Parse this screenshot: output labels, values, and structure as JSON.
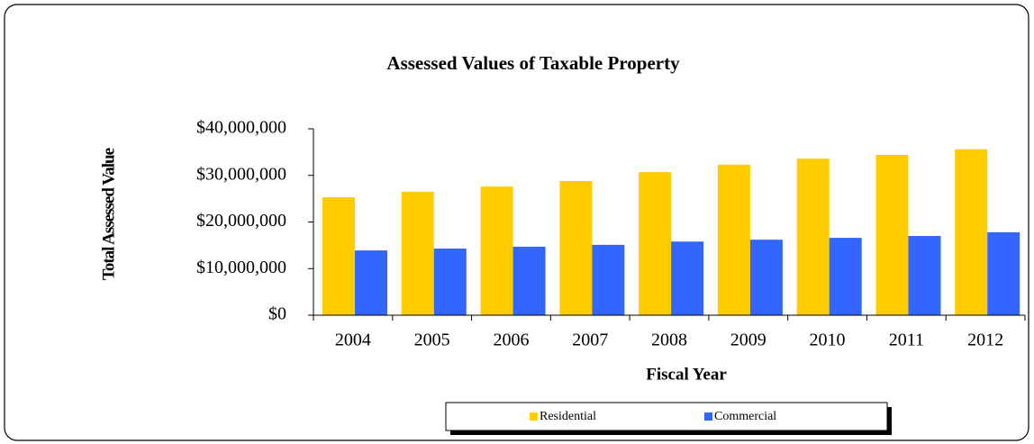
{
  "chart_data": {
    "type": "bar",
    "title": "Assessed Values of Taxable Property",
    "x_label": "Fiscal Year",
    "y_label": "Total Assessed Value",
    "categories": [
      "2004",
      "2005",
      "2006",
      "2007",
      "2008",
      "2009",
      "2010",
      "2011",
      "2012"
    ],
    "series": [
      {
        "name": "Residential",
        "color": "#ffcc00",
        "values": [
          25300000,
          26500000,
          27600000,
          28800000,
          30700000,
          32300000,
          33600000,
          34400000,
          35600000
        ]
      },
      {
        "name": "Commercial",
        "color": "#3366ff",
        "values": [
          13900000,
          14300000,
          14700000,
          15100000,
          15800000,
          16200000,
          16600000,
          17000000,
          17800000
        ]
      }
    ],
    "ylim": [
      0,
      40000000
    ],
    "yticks": [
      {
        "value": 0,
        "label": "$0"
      },
      {
        "value": 10000000,
        "label": "$10,000,000"
      },
      {
        "value": 20000000,
        "label": "$20,000,000"
      },
      {
        "value": 30000000,
        "label": "$30,000,000"
      },
      {
        "value": 40000000,
        "label": "$40,000,000"
      }
    ],
    "legend": "bottom"
  }
}
